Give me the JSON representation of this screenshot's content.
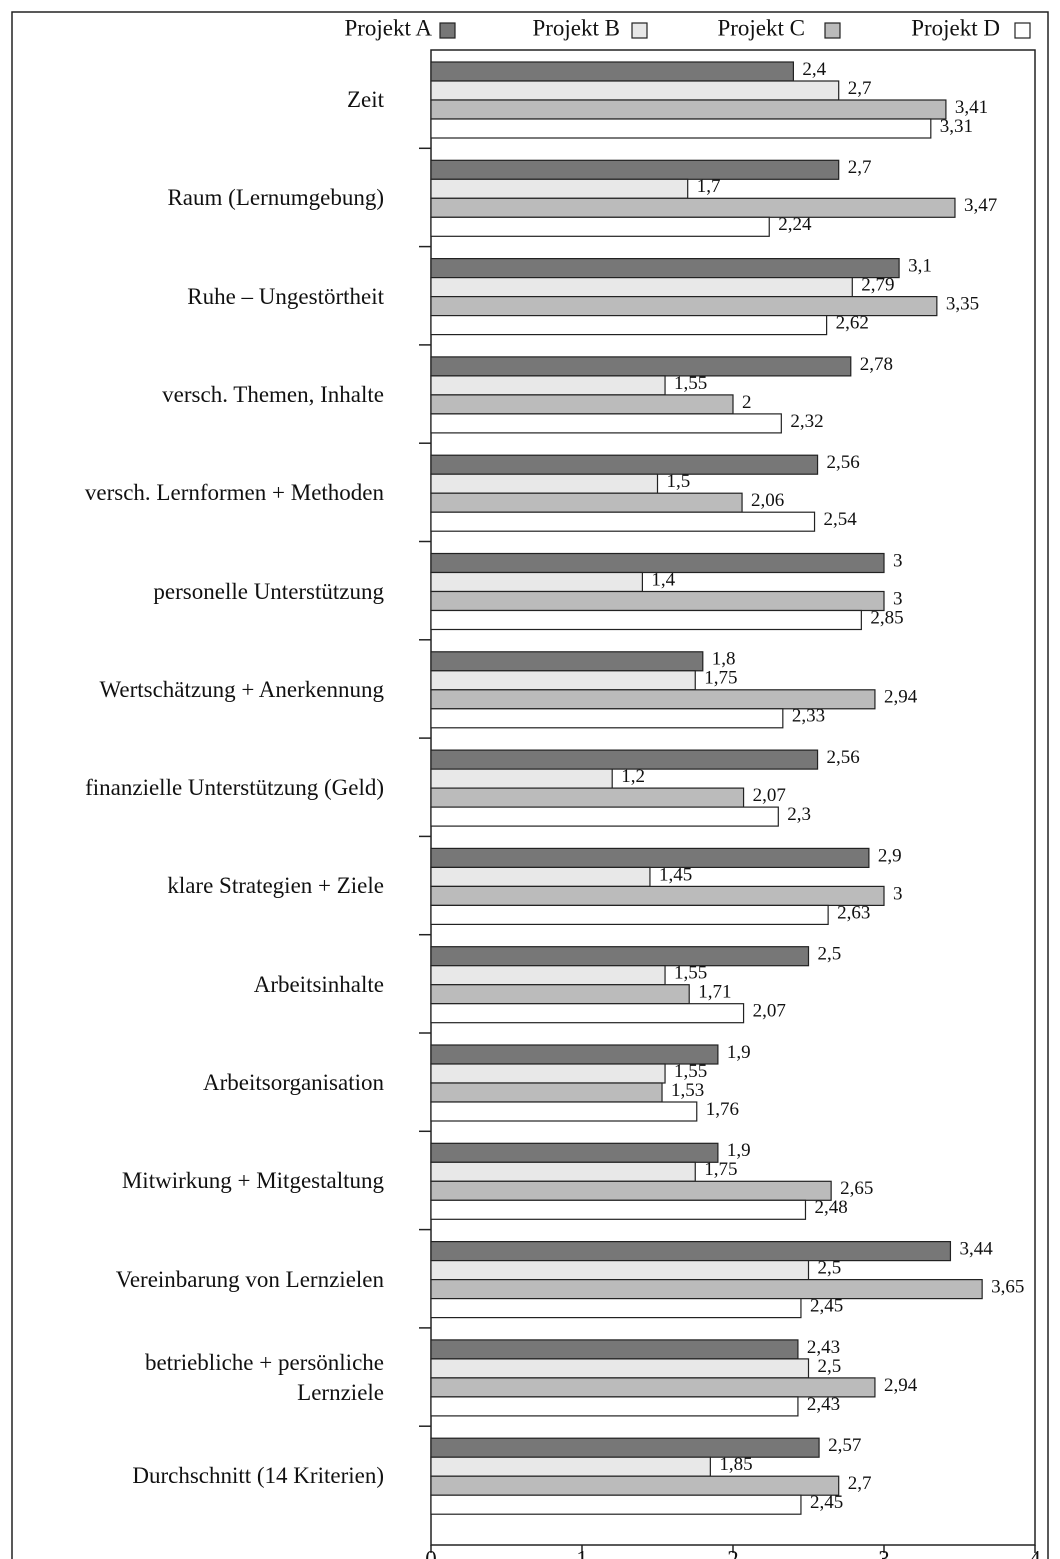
{
  "chart_data": {
    "type": "bar",
    "orientation": "horizontal",
    "categories": [
      "Zeit",
      "Raum (Lernumgebung)",
      "Ruhe – Ungestörtheit",
      "versch. Themen, Inhalte",
      "versch. Lernformen + Methoden",
      "personelle Unterstützung",
      "Wertschätzung + Anerkennung",
      "finanzielle Unterstützung (Geld)",
      "klare Strategien + Ziele",
      "Arbeitsinhalte",
      "Arbeitsorganisation",
      "Mitwirkung + Mitgestaltung",
      "Vereinbarung von Lernzielen",
      "betriebliche + persönliche\nLernziele",
      "Durchschnitt (14 Kriterien)"
    ],
    "series": [
      {
        "name": "Projekt A",
        "color": "#777777",
        "values": [
          2.4,
          2.7,
          3.1,
          2.78,
          2.56,
          3,
          1.8,
          2.56,
          2.9,
          2.5,
          1.9,
          1.9,
          3.44,
          2.43,
          2.57
        ],
        "value_labels": [
          "2,4",
          "2,7",
          "3,1",
          "2,78",
          "2,56",
          "3",
          "1,8",
          "2,56",
          "2,9",
          "2,5",
          "1,9",
          "1,9",
          "3,44",
          "2,43",
          "2,57"
        ]
      },
      {
        "name": "Projekt B",
        "color": "#e8e8e8",
        "values": [
          2.7,
          1.7,
          2.79,
          1.55,
          1.5,
          1.4,
          1.75,
          1.2,
          1.45,
          1.55,
          1.55,
          1.75,
          2.5,
          2.5,
          1.85
        ],
        "value_labels": [
          "2,7",
          "1,7",
          "2,79",
          "1,55",
          "1,5",
          "1,4",
          "1,75",
          "1,2",
          "1,45",
          "1,55",
          "1,55",
          "1,75",
          "2,5",
          "2,5",
          "1,85"
        ]
      },
      {
        "name": "Projekt C",
        "color": "#bbbbbb",
        "values": [
          3.41,
          3.47,
          3.35,
          2,
          2.06,
          3,
          2.94,
          2.07,
          3,
          1.71,
          1.53,
          2.65,
          3.65,
          2.94,
          2.7
        ],
        "value_labels": [
          "3,41",
          "3,47",
          "3,35",
          "2",
          "2,06",
          "3",
          "2,94",
          "2,07",
          "3",
          "1,71",
          "1,53",
          "2,65",
          "3,65",
          "2,94",
          "2,7"
        ]
      },
      {
        "name": "Projekt D",
        "color": "#ffffff",
        "values": [
          3.31,
          2.24,
          2.62,
          2.32,
          2.54,
          2.85,
          2.33,
          2.3,
          2.63,
          2.07,
          1.76,
          2.48,
          2.45,
          2.43,
          2.45
        ],
        "value_labels": [
          "3,31",
          "2,24",
          "2,62",
          "2,32",
          "2,54",
          "2,85",
          "2,33",
          "2,3",
          "2,63",
          "2,07",
          "1,76",
          "2,48",
          "2,45",
          "2,43",
          "2,45"
        ]
      }
    ],
    "xlim": [
      0,
      4
    ],
    "xticks": [
      0,
      1,
      2,
      3,
      4
    ],
    "legend": "top"
  }
}
